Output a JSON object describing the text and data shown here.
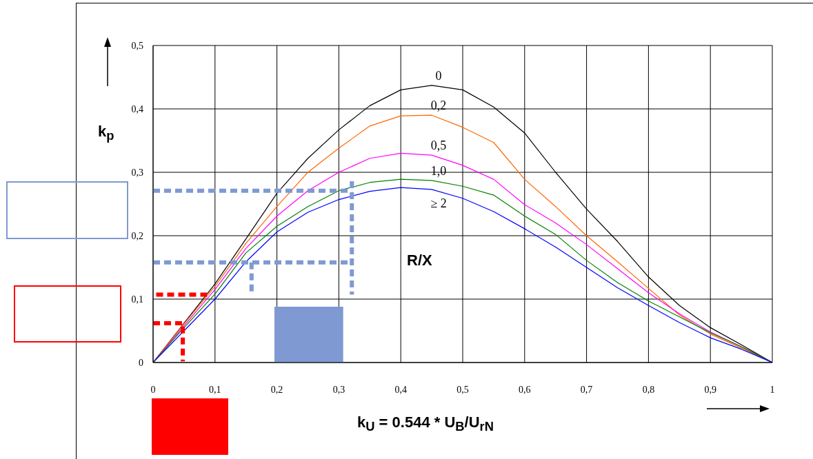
{
  "chart_data": {
    "type": "line",
    "xlabel": "k$_{U}$ = 0.544 * U$_{B}$/U$_{rN}$",
    "ylabel": "k$_{p}$",
    "legend_title": "R/X",
    "x": [
      0,
      0.05,
      0.1,
      0.15,
      0.2,
      0.25,
      0.3,
      0.35,
      0.4,
      0.45,
      0.5,
      0.55,
      0.6,
      0.65,
      0.7,
      0.75,
      0.8,
      0.85,
      0.9,
      0.95,
      1
    ],
    "series": [
      {
        "name": "0",
        "color": "#000000",
        "values": [
          0,
          0.062,
          0.124,
          0.195,
          0.267,
          0.322,
          0.367,
          0.405,
          0.43,
          0.437,
          0.43,
          0.403,
          0.362,
          0.3,
          0.242,
          0.191,
          0.135,
          0.09,
          0.055,
          0.028,
          0
        ]
      },
      {
        "name": "0,2",
        "color": "#ff6600",
        "values": [
          0,
          0.061,
          0.12,
          0.188,
          0.246,
          0.3,
          0.338,
          0.373,
          0.389,
          0.39,
          0.371,
          0.347,
          0.289,
          0.246,
          0.2,
          0.159,
          0.117,
          0.075,
          0.045,
          0.023,
          0
        ]
      },
      {
        "name": "0,5",
        "color": "#ff00ff",
        "values": [
          0,
          0.058,
          0.115,
          0.18,
          0.231,
          0.271,
          0.3,
          0.322,
          0.33,
          0.327,
          0.311,
          0.289,
          0.249,
          0.22,
          0.186,
          0.148,
          0.11,
          0.077,
          0.048,
          0.025,
          0
        ]
      },
      {
        "name": "1,0",
        "color": "#008000",
        "values": [
          0,
          0.055,
          0.108,
          0.173,
          0.215,
          0.246,
          0.271,
          0.284,
          0.289,
          0.287,
          0.278,
          0.264,
          0.231,
          0.202,
          0.161,
          0.126,
          0.097,
          0.072,
          0.047,
          0.025,
          0
        ]
      },
      {
        "name": "≥ 2",
        "color": "#0000ff",
        "values": [
          0,
          0.05,
          0.1,
          0.159,
          0.206,
          0.237,
          0.257,
          0.27,
          0.276,
          0.273,
          0.259,
          0.238,
          0.211,
          0.182,
          0.15,
          0.118,
          0.09,
          0.063,
          0.039,
          0.021,
          0
        ]
      },
      {
        "color": "#7f99d2",
        "line_style": "dotted",
        "x": [
          0,
          0.321
        ],
        "values": [
          0.271,
          0.271
        ]
      },
      {
        "color": "#7f99d2",
        "line_style": "dotted",
        "x": [
          0.321,
          0.321
        ],
        "values": [
          0.286,
          0.107
        ]
      },
      {
        "color": "#7f99d2",
        "line_style": "dotted",
        "x": [
          0,
          0.315
        ],
        "values": [
          0.158,
          0.158
        ]
      },
      {
        "color": "#7f99d2",
        "line_style": "dotted",
        "x": [
          0.159,
          0.159
        ],
        "values": [
          0.158,
          0.107
        ]
      },
      {
        "color": "#ff0000",
        "line_style": "dotted",
        "x": [
          0.005,
          0.087
        ],
        "values": [
          0.107,
          0.107
        ]
      },
      {
        "color": "#ff0000",
        "line_style": "dotted",
        "x": [
          0,
          0.048,
          0.048
        ],
        "values": [
          0.062,
          0.062,
          0.002
        ]
      },
      {
        "type": "area",
        "color": "#7f99d2",
        "x": [
          0.196,
          0.307
        ],
        "values": [
          0.088,
          0.088
        ]
      }
    ],
    "xlim": [
      0,
      1
    ],
    "xticks": [
      0,
      {
        "value": 0.1,
        "label": "0,1"
      },
      {
        "value": 0.2,
        "label": "0,2"
      },
      {
        "value": 0.3,
        "label": "0,3"
      },
      {
        "value": 0.4,
        "label": "0,4"
      },
      {
        "value": 0.5,
        "label": "0,5"
      },
      {
        "value": 0.6,
        "label": "0,6"
      },
      {
        "value": 0.7,
        "label": "0,7"
      },
      {
        "value": 0.8,
        "label": "0,8"
      },
      {
        "value": 0.9,
        "label": "0,9"
      },
      1
    ],
    "ylim": [
      0,
      0.5
    ],
    "yticks": [
      0,
      {
        "value": 0.1,
        "label": "0,1"
      },
      {
        "value": 0.2,
        "label": "0,2"
      },
      {
        "value": 0.3,
        "label": "0,3"
      },
      {
        "value": 0.4,
        "label": "0,4"
      },
      {
        "value": 0.5,
        "label": "0,5"
      }
    ],
    "grid": true,
    "legend": false,
    "marker": "none",
    "line_style": "solid"
  }
}
